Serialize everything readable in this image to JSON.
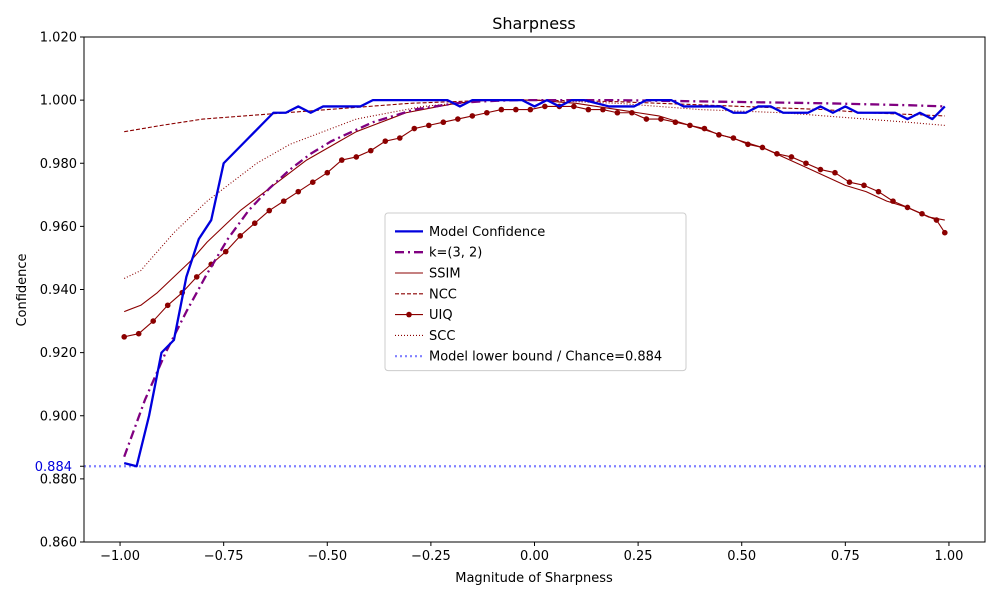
{
  "chart_data": {
    "type": "line",
    "title": "Sharpness",
    "xlabel": "Magnitude of Sharpness",
    "ylabel": "Confidence",
    "xlim": [
      -1.087,
      1.087
    ],
    "ylim": [
      0.86,
      1.02
    ],
    "x_ticks": [
      -1.0,
      -0.75,
      -0.5,
      -0.25,
      0.0,
      0.25,
      0.5,
      0.75,
      1.0
    ],
    "x_tick_labels": [
      "−1.00",
      "−0.75",
      "−0.50",
      "−0.25",
      "0.00",
      "0.25",
      "0.50",
      "0.75",
      "1.00"
    ],
    "y_ticks": [
      0.86,
      0.88,
      0.9,
      0.92,
      0.94,
      0.96,
      0.98,
      1.0,
      1.02
    ],
    "y_tick_labels": [
      "0.860",
      "0.880",
      "0.900",
      "0.920",
      "0.940",
      "0.960",
      "0.980",
      "1.000",
      "1.020"
    ],
    "reference_line": {
      "y": 0.884,
      "label": "0.884",
      "color": "#8080ff"
    },
    "legend_position": "center",
    "grid": false,
    "series": [
      {
        "name": "Model Confidence",
        "color": "#0000dd",
        "style": "solid-thick",
        "x": [
          -0.99,
          -0.96,
          -0.93,
          -0.9,
          -0.87,
          -0.84,
          -0.81,
          -0.78,
          -0.75,
          -0.72,
          -0.69,
          -0.66,
          -0.63,
          -0.6,
          -0.57,
          -0.54,
          -0.51,
          -0.48,
          -0.45,
          -0.42,
          -0.39,
          -0.36,
          -0.33,
          -0.3,
          -0.27,
          -0.24,
          -0.21,
          -0.18,
          -0.15,
          -0.12,
          -0.09,
          -0.06,
          -0.03,
          0.0,
          0.03,
          0.06,
          0.09,
          0.12,
          0.15,
          0.18,
          0.21,
          0.24,
          0.27,
          0.3,
          0.33,
          0.36,
          0.39,
          0.42,
          0.45,
          0.48,
          0.51,
          0.54,
          0.57,
          0.6,
          0.63,
          0.66,
          0.69,
          0.72,
          0.75,
          0.78,
          0.81,
          0.84,
          0.87,
          0.9,
          0.93,
          0.96,
          0.99
        ],
        "y": [
          0.885,
          0.884,
          0.9,
          0.92,
          0.924,
          0.944,
          0.956,
          0.962,
          0.98,
          0.984,
          0.988,
          0.992,
          0.996,
          0.996,
          0.998,
          0.996,
          0.998,
          0.998,
          0.998,
          0.998,
          1.0,
          1.0,
          1.0,
          1.0,
          1.0,
          1.0,
          1.0,
          0.998,
          1.0,
          1.0,
          1.0,
          1.0,
          1.0,
          0.998,
          1.0,
          0.998,
          1.0,
          1.0,
          0.999,
          0.998,
          0.998,
          0.998,
          1.0,
          1.0,
          1.0,
          0.998,
          0.998,
          0.998,
          0.998,
          0.996,
          0.996,
          0.998,
          0.998,
          0.996,
          0.996,
          0.996,
          0.998,
          0.996,
          0.998,
          0.996,
          0.996,
          0.996,
          0.996,
          0.994,
          0.996,
          0.994,
          0.998
        ]
      },
      {
        "name": "k=(3, 2)",
        "color": "#800080",
        "style": "dashdot",
        "x": [
          -0.99,
          -0.94,
          -0.89,
          -0.84,
          -0.79,
          -0.74,
          -0.69,
          -0.64,
          -0.59,
          -0.54,
          -0.49,
          -0.44,
          -0.39,
          -0.34,
          -0.29,
          -0.24,
          -0.19,
          -0.14,
          -0.09,
          -0.04,
          0.0,
          0.1,
          0.2,
          0.3,
          0.4,
          0.5,
          0.6,
          0.7,
          0.8,
          0.9,
          0.99
        ],
        "y": [
          0.887,
          0.905,
          0.92,
          0.933,
          0.945,
          0.956,
          0.965,
          0.972,
          0.978,
          0.983,
          0.987,
          0.99,
          0.993,
          0.995,
          0.997,
          0.998,
          0.999,
          0.9995,
          0.9998,
          1.0,
          1.0,
          1.0,
          1.0,
          0.9998,
          0.9996,
          0.9994,
          0.9992,
          0.999,
          0.9987,
          0.9984,
          0.998
        ]
      },
      {
        "name": "SSIM",
        "color": "#8b0000",
        "style": "solid",
        "x": [
          -0.99,
          -0.95,
          -0.91,
          -0.87,
          -0.83,
          -0.79,
          -0.75,
          -0.71,
          -0.67,
          -0.63,
          -0.59,
          -0.55,
          -0.51,
          -0.47,
          -0.43,
          -0.39,
          -0.35,
          -0.31,
          -0.27,
          -0.23,
          -0.19,
          -0.15,
          -0.11,
          -0.07,
          -0.03,
          0.0,
          0.05,
          0.1,
          0.15,
          0.2,
          0.25,
          0.3,
          0.35,
          0.4,
          0.45,
          0.5,
          0.55,
          0.6,
          0.65,
          0.7,
          0.75,
          0.8,
          0.85,
          0.9,
          0.95,
          0.99
        ],
        "y": [
          0.933,
          0.935,
          0.939,
          0.944,
          0.949,
          0.955,
          0.96,
          0.965,
          0.969,
          0.973,
          0.977,
          0.981,
          0.984,
          0.987,
          0.99,
          0.992,
          0.994,
          0.996,
          0.997,
          0.998,
          0.999,
          0.9995,
          1.0,
          1.0,
          1.0,
          1.0,
          0.9995,
          0.999,
          0.998,
          0.997,
          0.996,
          0.995,
          0.993,
          0.991,
          0.989,
          0.987,
          0.985,
          0.982,
          0.979,
          0.976,
          0.973,
          0.971,
          0.968,
          0.966,
          0.963,
          0.962
        ]
      },
      {
        "name": "NCC",
        "color": "#8b0000",
        "style": "dashed",
        "x": [
          -0.99,
          -0.9,
          -0.8,
          -0.7,
          -0.6,
          -0.5,
          -0.4,
          -0.3,
          -0.2,
          -0.1,
          0.0,
          0.1,
          0.2,
          0.3,
          0.4,
          0.5,
          0.6,
          0.7,
          0.8,
          0.9,
          0.99
        ],
        "y": [
          0.99,
          0.992,
          0.994,
          0.995,
          0.996,
          0.997,
          0.998,
          0.999,
          0.9995,
          1.0,
          1.0,
          0.9998,
          0.9995,
          0.999,
          0.9985,
          0.998,
          0.9975,
          0.997,
          0.996,
          0.9955,
          0.995
        ]
      },
      {
        "name": "UIQ",
        "color": "#8b0000",
        "style": "solid-markers",
        "x": [
          -0.99,
          -0.955,
          -0.92,
          -0.885,
          -0.85,
          -0.815,
          -0.78,
          -0.745,
          -0.71,
          -0.675,
          -0.64,
          -0.605,
          -0.57,
          -0.535,
          -0.5,
          -0.465,
          -0.43,
          -0.395,
          -0.36,
          -0.325,
          -0.29,
          -0.255,
          -0.22,
          -0.185,
          -0.15,
          -0.115,
          -0.08,
          -0.045,
          -0.01,
          0.025,
          0.06,
          0.095,
          0.13,
          0.165,
          0.2,
          0.235,
          0.27,
          0.305,
          0.34,
          0.375,
          0.41,
          0.445,
          0.48,
          0.515,
          0.55,
          0.585,
          0.62,
          0.655,
          0.69,
          0.725,
          0.76,
          0.795,
          0.83,
          0.865,
          0.9,
          0.935,
          0.97,
          0.99
        ],
        "y": [
          0.925,
          0.926,
          0.93,
          0.935,
          0.939,
          0.944,
          0.948,
          0.952,
          0.957,
          0.961,
          0.965,
          0.968,
          0.971,
          0.974,
          0.977,
          0.981,
          0.982,
          0.984,
          0.987,
          0.988,
          0.991,
          0.992,
          0.993,
          0.994,
          0.995,
          0.996,
          0.997,
          0.997,
          0.997,
          0.998,
          0.998,
          0.998,
          0.997,
          0.997,
          0.996,
          0.996,
          0.994,
          0.994,
          0.993,
          0.992,
          0.991,
          0.989,
          0.988,
          0.986,
          0.985,
          0.983,
          0.982,
          0.98,
          0.978,
          0.977,
          0.974,
          0.973,
          0.971,
          0.968,
          0.966,
          0.964,
          0.962,
          0.958
        ]
      },
      {
        "name": "SCC",
        "color": "#8b0000",
        "style": "dotted",
        "x": [
          -0.99,
          -0.95,
          -0.91,
          -0.87,
          -0.83,
          -0.79,
          -0.75,
          -0.71,
          -0.67,
          -0.63,
          -0.59,
          -0.55,
          -0.51,
          -0.47,
          -0.43,
          -0.39,
          -0.35,
          -0.31,
          -0.27,
          -0.23,
          -0.19,
          -0.15,
          -0.11,
          -0.07,
          -0.03,
          0.0,
          0.1,
          0.2,
          0.3,
          0.4,
          0.5,
          0.6,
          0.7,
          0.8,
          0.9,
          0.99
        ],
        "y": [
          0.9435,
          0.946,
          0.952,
          0.958,
          0.963,
          0.968,
          0.972,
          0.976,
          0.98,
          0.983,
          0.986,
          0.988,
          0.99,
          0.992,
          0.994,
          0.995,
          0.996,
          0.997,
          0.998,
          0.9985,
          0.999,
          0.9995,
          1.0,
          1.0,
          1.0,
          1.0,
          0.9995,
          0.999,
          0.998,
          0.997,
          0.9965,
          0.996,
          0.995,
          0.994,
          0.993,
          0.992
        ]
      }
    ],
    "legend": [
      {
        "label": "Model Confidence",
        "color": "#0000dd",
        "style": "solid-thick"
      },
      {
        "label": "k=(3, 2)",
        "color": "#800080",
        "style": "dashdot"
      },
      {
        "label": "SSIM",
        "color": "#8b0000",
        "style": "solid"
      },
      {
        "label": "NCC",
        "color": "#8b0000",
        "style": "dashed"
      },
      {
        "label": "UIQ",
        "color": "#8b0000",
        "style": "solid-markers"
      },
      {
        "label": "SCC",
        "color": "#8b0000",
        "style": "dotted"
      },
      {
        "label": "Model lower bound / Chance=0.884",
        "color": "#8080ff",
        "style": "dotted-thick"
      }
    ]
  }
}
